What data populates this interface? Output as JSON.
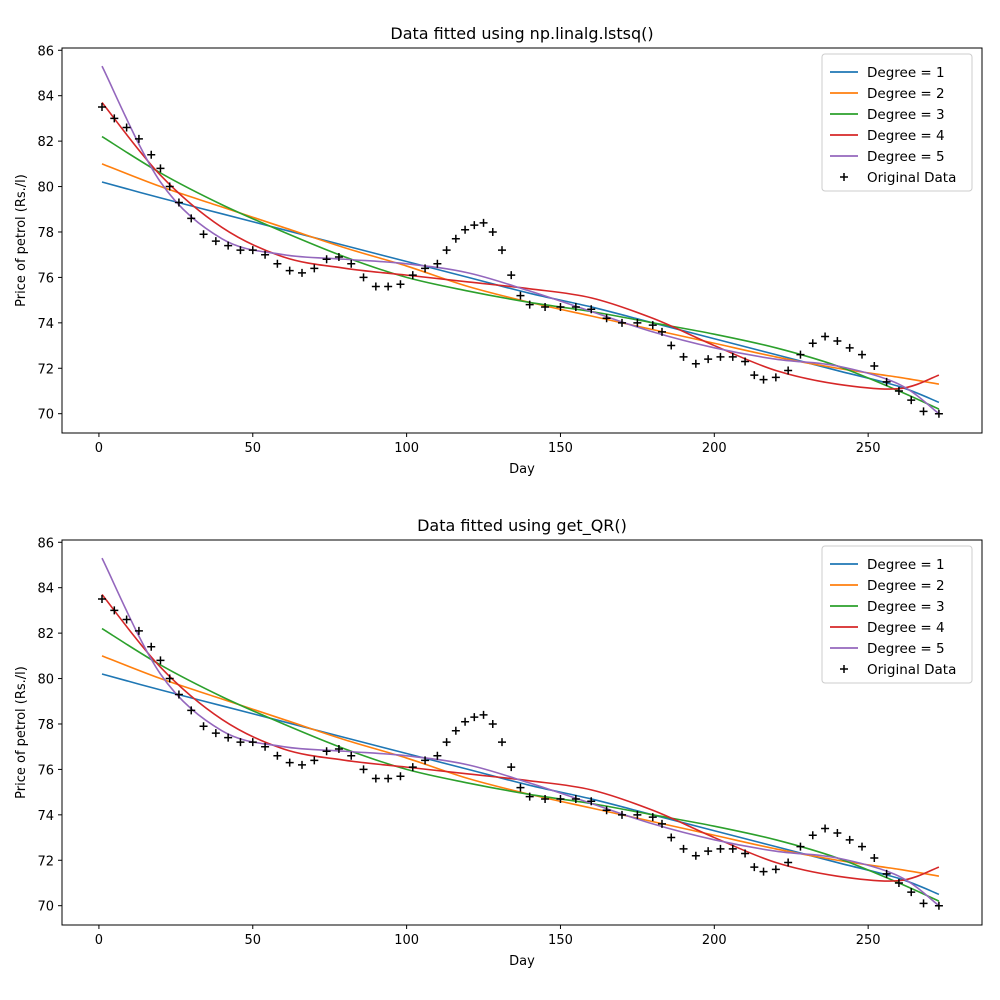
{
  "chart_data": [
    {
      "type": "line",
      "title": "Data fitted using np.linalg.lstsq()",
      "xlabel": "Day",
      "ylabel": "Price of petrol (Rs./l)",
      "xlim": [
        -12,
        287
      ],
      "ylim": [
        69.15,
        86.1
      ],
      "xticks": [
        0,
        50,
        100,
        150,
        200,
        250
      ],
      "yticks": [
        70,
        72,
        74,
        76,
        78,
        80,
        82,
        84,
        86
      ],
      "legend_position": "top-right",
      "fit_knots_x": [
        1,
        20,
        40,
        60,
        80,
        100,
        120,
        140,
        160,
        180,
        200,
        220,
        240,
        260,
        273
      ],
      "series": [
        {
          "name": "Degree = 1",
          "color": "#1f77b4",
          "y": [
            80.2,
            79.5,
            78.8,
            78.1,
            77.4,
            76.7,
            76.0,
            75.3,
            74.7,
            74.0,
            73.3,
            72.6,
            71.9,
            71.2,
            70.5
          ]
        },
        {
          "name": "Degree = 2",
          "color": "#ff7f0e",
          "y": [
            81.0,
            80.0,
            79.1,
            78.2,
            77.3,
            76.5,
            75.6,
            74.9,
            74.3,
            73.7,
            73.1,
            72.5,
            72.0,
            71.6,
            71.3
          ]
        },
        {
          "name": "Degree = 3",
          "color": "#2ca02c",
          "y": [
            82.2,
            80.6,
            79.2,
            78.0,
            76.9,
            76.0,
            75.4,
            74.9,
            74.5,
            74.0,
            73.5,
            72.9,
            72.1,
            71.0,
            70.2
          ]
        },
        {
          "name": "Degree = 4",
          "color": "#d62728",
          "y": [
            83.7,
            80.5,
            78.2,
            76.9,
            76.4,
            76.1,
            75.8,
            75.5,
            75.1,
            74.2,
            73.0,
            71.9,
            71.3,
            71.1,
            71.7
          ]
        },
        {
          "name": "Degree = 5",
          "color": "#9467bd",
          "y": [
            85.3,
            80.2,
            77.7,
            77.0,
            76.8,
            76.6,
            76.2,
            75.4,
            74.5,
            73.6,
            72.9,
            72.4,
            72.1,
            71.3,
            70.0
          ]
        }
      ],
      "original_data": {
        "name": "Original Data",
        "x": [
          1,
          5,
          9,
          13,
          17,
          20,
          23,
          26,
          30,
          34,
          38,
          42,
          46,
          50,
          54,
          58,
          62,
          66,
          70,
          74,
          78,
          82,
          86,
          90,
          94,
          98,
          102,
          106,
          110,
          113,
          116,
          119,
          122,
          125,
          128,
          131,
          134,
          137,
          140,
          145,
          150,
          155,
          160,
          165,
          170,
          175,
          180,
          183,
          186,
          190,
          194,
          198,
          202,
          206,
          210,
          213,
          216,
          220,
          224,
          228,
          232,
          236,
          240,
          244,
          248,
          252,
          256,
          260,
          264,
          268,
          273
        ],
        "y": [
          83.5,
          83.0,
          82.6,
          82.1,
          81.4,
          80.8,
          80.0,
          79.3,
          78.6,
          77.9,
          77.6,
          77.4,
          77.2,
          77.2,
          77.0,
          76.6,
          76.3,
          76.2,
          76.4,
          76.8,
          76.9,
          76.6,
          76.0,
          75.6,
          75.6,
          75.7,
          76.1,
          76.4,
          76.6,
          77.2,
          77.7,
          78.1,
          78.3,
          78.4,
          78.0,
          77.2,
          76.1,
          75.2,
          74.8,
          74.7,
          74.7,
          74.7,
          74.6,
          74.2,
          74.0,
          74.0,
          73.9,
          73.6,
          73.0,
          72.5,
          72.2,
          72.4,
          72.5,
          72.5,
          72.3,
          71.7,
          71.5,
          71.6,
          71.9,
          72.6,
          73.1,
          73.4,
          73.2,
          72.9,
          72.6,
          72.1,
          71.4,
          71.0,
          70.6,
          70.1,
          70.0
        ]
      }
    },
    {
      "type": "line",
      "title": "Data fitted using get_QR()",
      "xlabel": "Day",
      "ylabel": "Price of petrol (Rs./l)",
      "xlim": [
        -12,
        287
      ],
      "ylim": [
        69.15,
        86.1
      ],
      "xticks": [
        0,
        50,
        100,
        150,
        200,
        250
      ],
      "yticks": [
        70,
        72,
        74,
        76,
        78,
        80,
        82,
        84,
        86
      ],
      "legend_position": "top-right",
      "fit_knots_x": [
        1,
        20,
        40,
        60,
        80,
        100,
        120,
        140,
        160,
        180,
        200,
        220,
        240,
        260,
        273
      ],
      "series": [
        {
          "name": "Degree = 1",
          "color": "#1f77b4",
          "y": [
            80.2,
            79.5,
            78.8,
            78.1,
            77.4,
            76.7,
            76.0,
            75.3,
            74.7,
            74.0,
            73.3,
            72.6,
            71.9,
            71.2,
            70.5
          ]
        },
        {
          "name": "Degree = 2",
          "color": "#ff7f0e",
          "y": [
            81.0,
            80.0,
            79.1,
            78.2,
            77.3,
            76.5,
            75.6,
            74.9,
            74.3,
            73.7,
            73.1,
            72.5,
            72.0,
            71.6,
            71.3
          ]
        },
        {
          "name": "Degree = 3",
          "color": "#2ca02c",
          "y": [
            82.2,
            80.6,
            79.2,
            78.0,
            76.9,
            76.0,
            75.4,
            74.9,
            74.5,
            74.0,
            73.5,
            72.9,
            72.1,
            71.0,
            70.2
          ]
        },
        {
          "name": "Degree = 4",
          "color": "#d62728",
          "y": [
            83.7,
            80.5,
            78.2,
            76.9,
            76.4,
            76.1,
            75.8,
            75.5,
            75.1,
            74.2,
            73.0,
            71.9,
            71.3,
            71.1,
            71.7
          ]
        },
        {
          "name": "Degree = 5",
          "color": "#9467bd",
          "y": [
            85.3,
            80.2,
            77.7,
            77.0,
            76.8,
            76.6,
            76.2,
            75.4,
            74.5,
            73.6,
            72.9,
            72.4,
            72.1,
            71.3,
            70.0
          ]
        }
      ],
      "original_data": {
        "name": "Original Data",
        "x": [
          1,
          5,
          9,
          13,
          17,
          20,
          23,
          26,
          30,
          34,
          38,
          42,
          46,
          50,
          54,
          58,
          62,
          66,
          70,
          74,
          78,
          82,
          86,
          90,
          94,
          98,
          102,
          106,
          110,
          113,
          116,
          119,
          122,
          125,
          128,
          131,
          134,
          137,
          140,
          145,
          150,
          155,
          160,
          165,
          170,
          175,
          180,
          183,
          186,
          190,
          194,
          198,
          202,
          206,
          210,
          213,
          216,
          220,
          224,
          228,
          232,
          236,
          240,
          244,
          248,
          252,
          256,
          260,
          264,
          268,
          273
        ],
        "y": [
          83.5,
          83.0,
          82.6,
          82.1,
          81.4,
          80.8,
          80.0,
          79.3,
          78.6,
          77.9,
          77.6,
          77.4,
          77.2,
          77.2,
          77.0,
          76.6,
          76.3,
          76.2,
          76.4,
          76.8,
          76.9,
          76.6,
          76.0,
          75.6,
          75.6,
          75.7,
          76.1,
          76.4,
          76.6,
          77.2,
          77.7,
          78.1,
          78.3,
          78.4,
          78.0,
          77.2,
          76.1,
          75.2,
          74.8,
          74.7,
          74.7,
          74.7,
          74.6,
          74.2,
          74.0,
          74.0,
          73.9,
          73.6,
          73.0,
          72.5,
          72.2,
          72.4,
          72.5,
          72.5,
          72.3,
          71.7,
          71.5,
          71.6,
          71.9,
          72.6,
          73.1,
          73.4,
          73.2,
          72.9,
          72.6,
          72.1,
          71.4,
          71.0,
          70.6,
          70.1,
          70.0
        ]
      }
    }
  ]
}
